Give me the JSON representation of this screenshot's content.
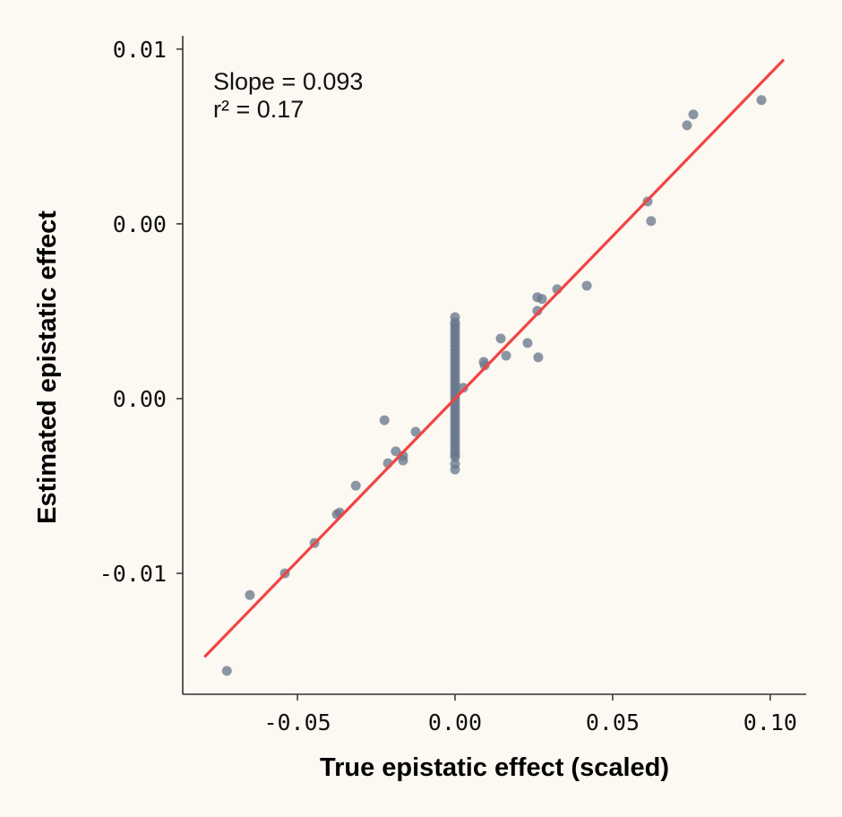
{
  "chart_data": {
    "type": "scatter",
    "xlabel": "True epistatic effect (scaled)",
    "ylabel": "Estimated epistatic effect",
    "xlim": [
      -0.0864,
      0.1114
    ],
    "ylim": [
      -0.00846,
      0.01038
    ],
    "xticks": [
      {
        "value": -0.05,
        "label": "-0.05"
      },
      {
        "value": 0.0,
        "label": "0.00"
      },
      {
        "value": 0.05,
        "label": "0.05"
      },
      {
        "value": 0.1,
        "label": "0.10"
      }
    ],
    "yticks": [
      {
        "value": 0.01,
        "label": "0.01"
      },
      {
        "value": 0.005,
        "label": "0.00"
      },
      {
        "value": 0.0,
        "label": "0.00"
      },
      {
        "value": -0.005,
        "label": "-0.01"
      }
    ],
    "grid": false,
    "annotations": [
      "Slope = 0.093",
      "r² = 0.17"
    ],
    "fit_line": {
      "slope": 0.093,
      "intercept": 0.0,
      "x_range": [
        -0.0795,
        0.1043
      ],
      "color": "#f04444"
    },
    "point_color": "#66768a",
    "points": [
      [
        -0.0724,
        -0.00779
      ],
      [
        -0.0651,
        -0.00562
      ],
      [
        -0.054,
        -0.005
      ],
      [
        -0.0446,
        -0.00413
      ],
      [
        -0.0375,
        -0.00331
      ],
      [
        -0.0366,
        -0.00326
      ],
      [
        -0.0315,
        -0.00249
      ],
      [
        -0.0224,
        -0.00062
      ],
      [
        -0.0213,
        -0.00185
      ],
      [
        -0.0188,
        -0.00151
      ],
      [
        -0.0165,
        -0.00164
      ],
      [
        -0.0165,
        -0.00177
      ],
      [
        -0.0125,
        -0.00095
      ],
      [
        0.0026,
        0.00031
      ],
      [
        0.0091,
        0.00105
      ],
      [
        0.0094,
        0.00095
      ],
      [
        0.0145,
        0.00172
      ],
      [
        0.0162,
        0.00123
      ],
      [
        0.023,
        0.00159
      ],
      [
        0.0261,
        0.0029
      ],
      [
        0.0276,
        0.00285
      ],
      [
        0.0261,
        0.00251
      ],
      [
        0.0264,
        0.00118
      ],
      [
        0.0324,
        0.00313
      ],
      [
        0.0418,
        0.00323
      ],
      [
        0.0611,
        0.00564
      ],
      [
        0.0622,
        0.00508
      ],
      [
        0.0736,
        0.00782
      ],
      [
        0.0756,
        0.00813
      ],
      [
        0.0972,
        0.00854
      ],
      [
        0,
        0.00233
      ],
      [
        0,
        0.00218
      ],
      [
        0,
        0.0021
      ],
      [
        0,
        0.002
      ],
      [
        0,
        0.0019
      ],
      [
        0,
        0.0018
      ],
      [
        0,
        0.0017
      ],
      [
        0,
        0.0016
      ],
      [
        0,
        0.0015
      ],
      [
        0,
        0.0014
      ],
      [
        0,
        0.0013
      ],
      [
        0,
        0.0012
      ],
      [
        0,
        0.0011
      ],
      [
        0,
        0.001
      ],
      [
        0,
        0.0009
      ],
      [
        0,
        0.0008
      ],
      [
        0,
        0.0007
      ],
      [
        0,
        0.0006
      ],
      [
        0,
        0.0005
      ],
      [
        0,
        0.0004
      ],
      [
        0,
        0.0003
      ],
      [
        0,
        0.0002
      ],
      [
        0,
        0.0001
      ],
      [
        0,
        0.0
      ],
      [
        0,
        -0.0001
      ],
      [
        0,
        -0.0002
      ],
      [
        0,
        -0.0003
      ],
      [
        0,
        -0.0004
      ],
      [
        0,
        -0.0005
      ],
      [
        0,
        -0.0006
      ],
      [
        0,
        -0.0007
      ],
      [
        0,
        -0.0008
      ],
      [
        0,
        -0.0009
      ],
      [
        0,
        -0.001
      ],
      [
        0,
        -0.0011
      ],
      [
        0,
        -0.0012
      ],
      [
        0,
        -0.0013
      ],
      [
        0,
        -0.0014
      ],
      [
        0,
        -0.0015
      ],
      [
        0,
        -0.0016
      ],
      [
        0,
        -0.00167
      ],
      [
        0,
        -0.00187
      ],
      [
        0,
        -0.00203
      ]
    ]
  }
}
